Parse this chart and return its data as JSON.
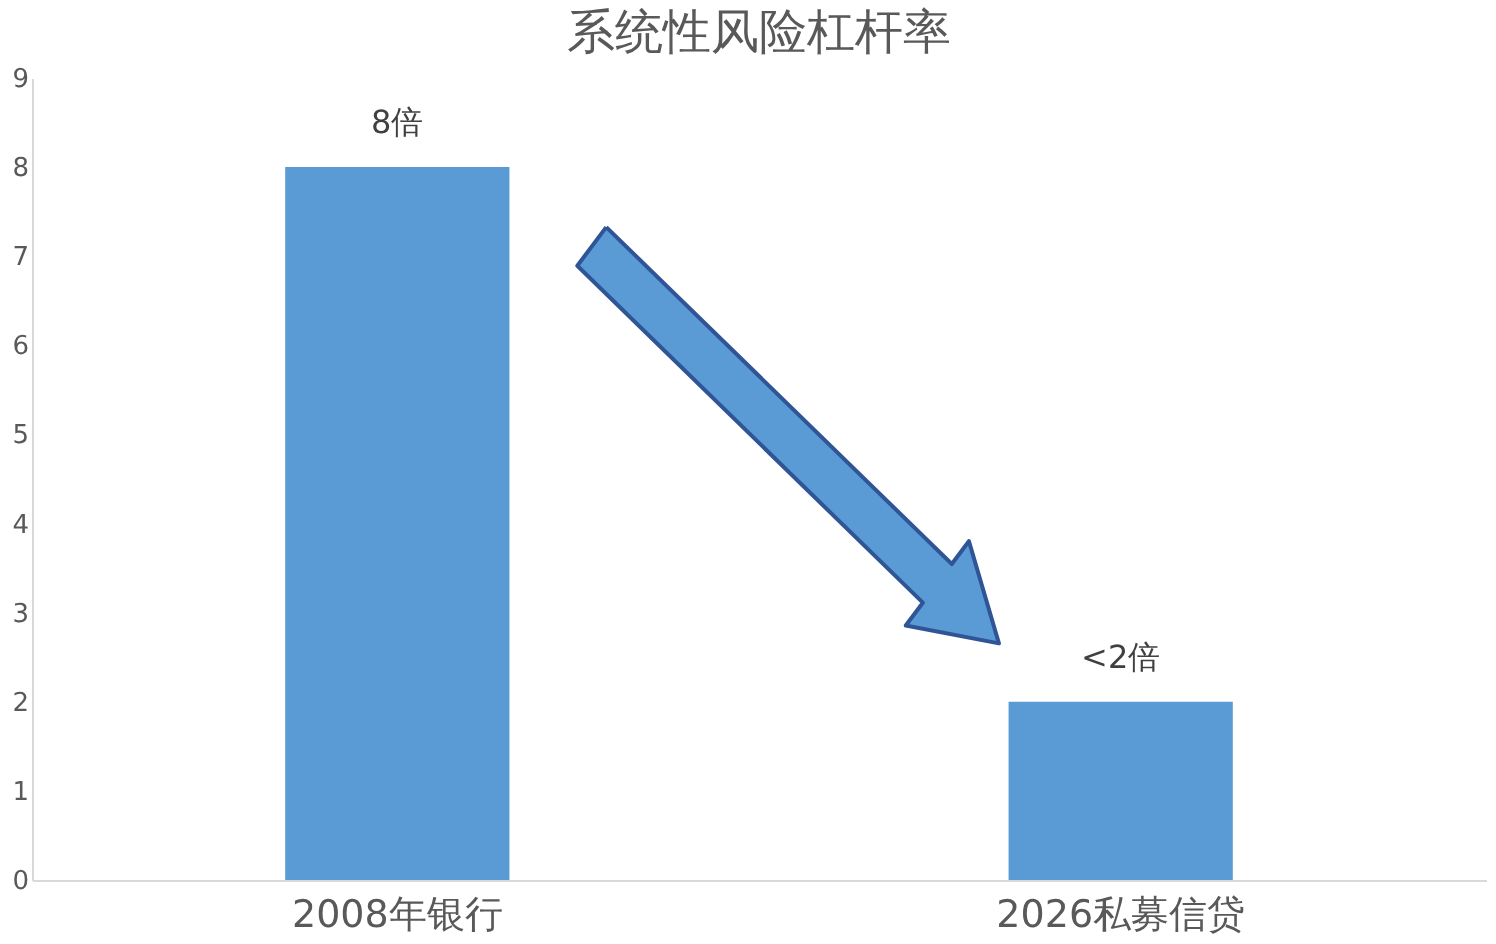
{
  "chart_data": {
    "type": "bar",
    "title": "系统性风险杠杆率",
    "categories": [
      "2008年银行",
      "2026私募信贷"
    ],
    "values": [
      8,
      2
    ],
    "color": "#5b9bd5",
    "value_labels": [
      "8倍",
      "<2倍"
    ],
    "ylim": [
      0,
      9
    ],
    "yticks": [
      0,
      1,
      2,
      3,
      4,
      5,
      6,
      7,
      8,
      9
    ],
    "grid": false
  }
}
